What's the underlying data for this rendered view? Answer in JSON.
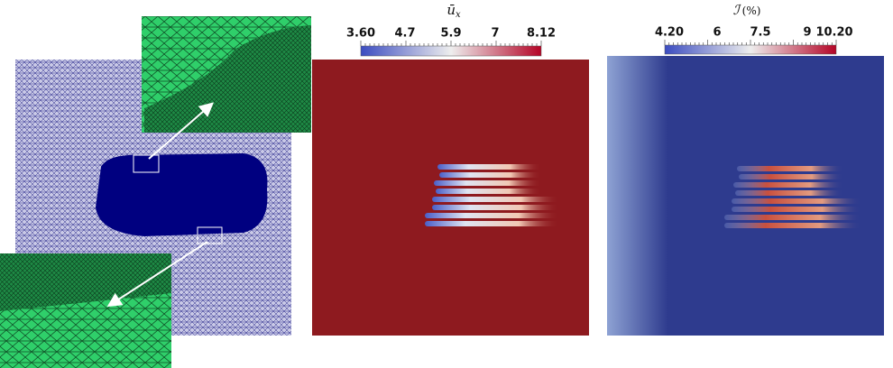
{
  "panels": [
    {
      "colorbar": {
        "title": {
          "symbol": "ū",
          "subscript": "x"
        },
        "ticks": [
          "3.60",
          "4.7",
          "5.9",
          "7",
          "8.12"
        ]
      }
    },
    {
      "colorbar": {
        "title": {
          "symbol": "ℐ",
          "subscript": "(%)"
        },
        "ticks": [
          "4.20",
          "6",
          "7.5",
          "9",
          "10.20"
        ]
      }
    }
  ]
}
